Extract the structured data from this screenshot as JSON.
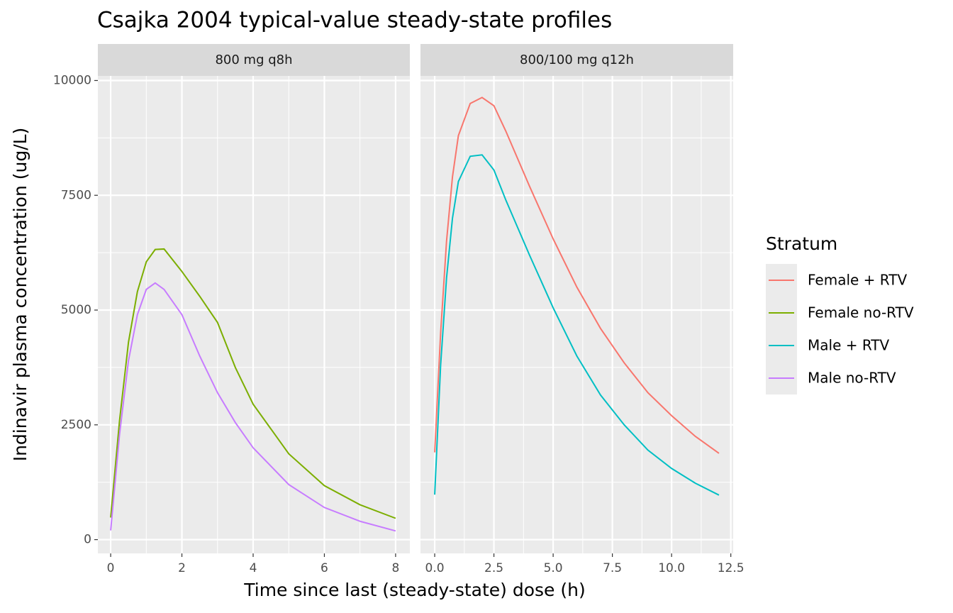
{
  "title": "Csajka 2004 typical-value steady-state profiles",
  "xlabel": "Time since last (steady-state) dose (h)",
  "ylabel": "Indinavir plasma concentration (ug/L)",
  "legend_title": "Stratum",
  "chart_data": [
    {
      "type": "line",
      "title": "800 mg q8h",
      "x": [
        0,
        0.25,
        0.5,
        0.75,
        1,
        1.25,
        1.5,
        2,
        2.5,
        3,
        3.5,
        4,
        5,
        6,
        7,
        8
      ],
      "series": [
        {
          "name": "Female no-RTV",
          "color": "#7CAE00",
          "values": [
            480,
            2600,
            4300,
            5400,
            6050,
            6320,
            6330,
            5840,
            5300,
            4730,
            3750,
            2950,
            1870,
            1175,
            760,
            465
          ]
        },
        {
          "name": "Male no-RTV",
          "color": "#C77CFF",
          "values": [
            200,
            2300,
            3900,
            4900,
            5450,
            5590,
            5450,
            4900,
            4000,
            3200,
            2550,
            2000,
            1200,
            700,
            400,
            190
          ]
        }
      ],
      "xlim": [
        -0.36,
        8.4
      ],
      "xticks": [
        0,
        2,
        4,
        6,
        8
      ],
      "ylim": [
        -300,
        10100
      ],
      "yticks": [
        0,
        2500,
        5000,
        7500,
        10000
      ],
      "grid": true
    },
    {
      "type": "line",
      "title": "800/100 mg q12h",
      "x": [
        0,
        0.25,
        0.5,
        0.75,
        1,
        1.5,
        2,
        2.5,
        3,
        4,
        5,
        6,
        7,
        8,
        9,
        10,
        11,
        12
      ],
      "series": [
        {
          "name": "Female + RTV",
          "color": "#F8766D",
          "values": [
            1900,
            4500,
            6500,
            7900,
            8800,
            9500,
            9630,
            9450,
            8900,
            7700,
            6550,
            5500,
            4600,
            3850,
            3200,
            2700,
            2250,
            1880
          ]
        },
        {
          "name": "Male + RTV",
          "color": "#00BFC4",
          "values": [
            980,
            3800,
            5700,
            7000,
            7800,
            8350,
            8380,
            8050,
            7400,
            6200,
            5050,
            4000,
            3150,
            2500,
            1950,
            1550,
            1230,
            970
          ]
        }
      ],
      "xlim": [
        -0.6,
        12.6
      ],
      "xticks": [
        {
          "value": 0,
          "label": "0.0"
        },
        {
          "value": 2.5,
          "label": "2.5"
        },
        {
          "value": 5,
          "label": "5.0"
        },
        {
          "value": 7.5,
          "label": "7.5"
        },
        {
          "value": 10,
          "label": "10.0"
        },
        {
          "value": 12.5,
          "label": "12.5"
        }
      ],
      "grid": true
    }
  ]
}
